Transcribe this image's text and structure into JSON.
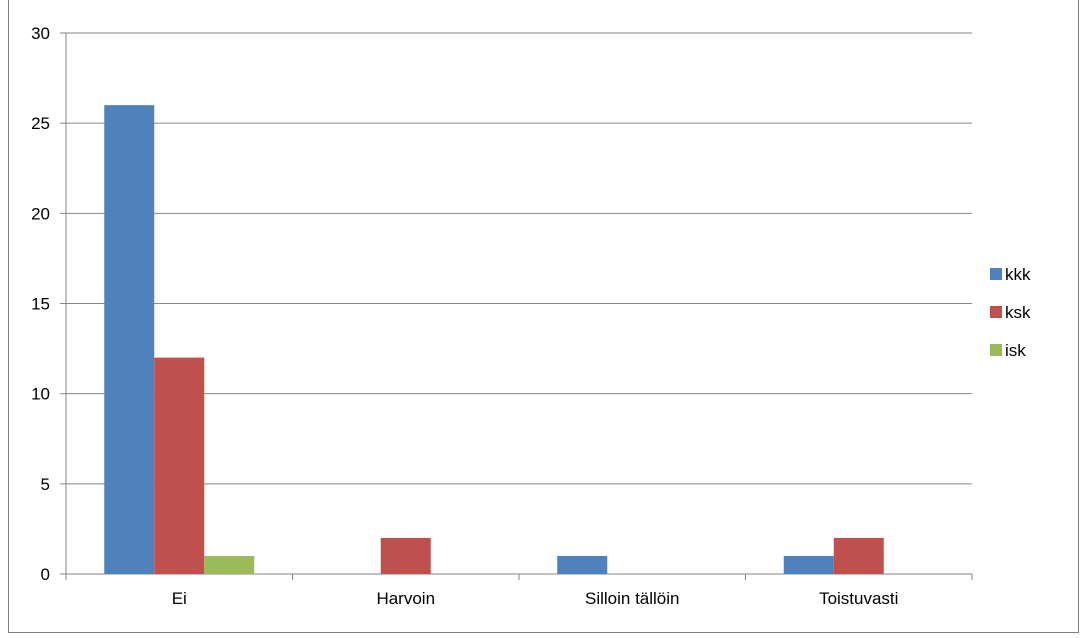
{
  "chart_data": {
    "type": "bar",
    "title": "",
    "xlabel": "",
    "ylabel": "",
    "categories": [
      "Ei",
      "Harvoin",
      "Silloin tällöin",
      "Toistuvasti"
    ],
    "series": [
      {
        "name": "kkk",
        "values": [
          26,
          0,
          1,
          1
        ],
        "color": "#4f81bd"
      },
      {
        "name": "ksk",
        "values": [
          12,
          2,
          0,
          2
        ],
        "color": "#c0504d"
      },
      {
        "name": "isk",
        "values": [
          1,
          0,
          0,
          0
        ],
        "color": "#9bbb59"
      }
    ],
    "ylim": [
      0,
      30
    ],
    "yticks": [
      "0",
      "5",
      "10",
      "15",
      "20",
      "25",
      "30"
    ],
    "grid": true,
    "legend_position": "right"
  }
}
